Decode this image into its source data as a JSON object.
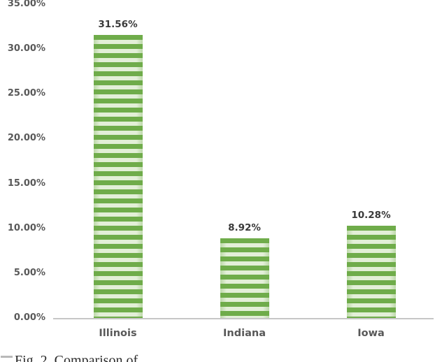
{
  "chart_data": {
    "type": "bar",
    "title": "",
    "xlabel": "",
    "ylabel": "",
    "categories": [
      "Illinois",
      "Indiana",
      "Iowa"
    ],
    "values": [
      31.56,
      8.92,
      10.28
    ],
    "data_labels": [
      "31.56%",
      "8.92%",
      "10.28%"
    ],
    "y_ticks": [
      {
        "value": 35,
        "label": "35.00%"
      },
      {
        "value": 30,
        "label": "30.00%"
      },
      {
        "value": 25,
        "label": "25.00%"
      },
      {
        "value": 20,
        "label": "20.00%"
      },
      {
        "value": 15,
        "label": "15.00%"
      },
      {
        "value": 10,
        "label": "10.00%"
      },
      {
        "value": 5,
        "label": "5.00%"
      },
      {
        "value": 0,
        "label": "0.00%"
      }
    ],
    "ylim": [
      0,
      35
    ],
    "grid": false,
    "legend": "none",
    "bar_style": {
      "pattern": "horizontal-stripes",
      "stripe_dark": "#6fac4a",
      "stripe_light": "#e3efd8",
      "edge_shade": "rgba(111,172,74,0.33)"
    },
    "axis_line_color": "#c6c6c6",
    "tick_label_color": "#595959",
    "data_label_color": "#3a3a3a"
  },
  "caption": {
    "visible_text": "Fig. 2. Comparison of",
    "truncated": true
  }
}
